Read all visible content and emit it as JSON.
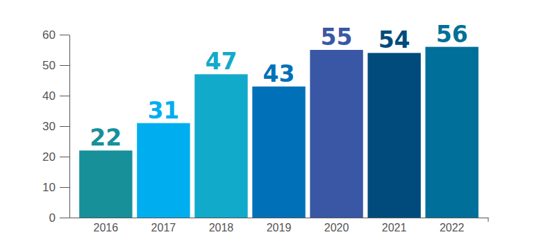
{
  "chart_data": {
    "type": "bar",
    "categories": [
      "2016",
      "2017",
      "2018",
      "2019",
      "2020",
      "2021",
      "2022"
    ],
    "values": [
      22,
      31,
      47,
      43,
      55,
      54,
      56
    ],
    "colors": [
      "#17909a",
      "#00aeef",
      "#12aacb",
      "#0071b9",
      "#3a57a5",
      "#004b7c",
      "#006f99"
    ],
    "ylim": [
      0,
      60
    ],
    "yticks": [
      0,
      10,
      20,
      30,
      40,
      50,
      60
    ],
    "grid": false,
    "data_labels": true
  }
}
